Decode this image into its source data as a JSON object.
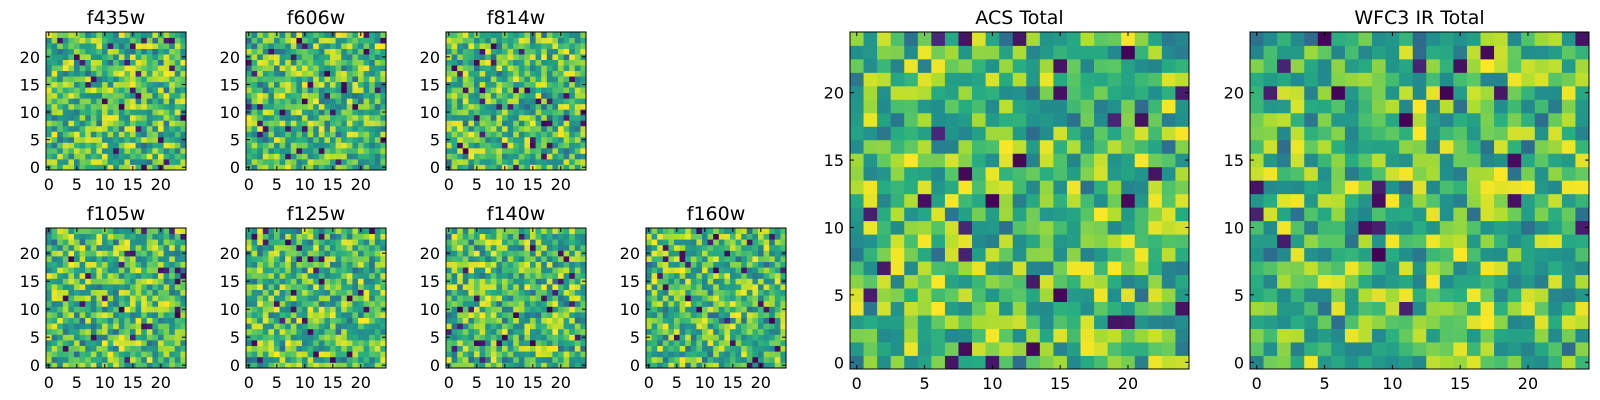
{
  "chart_data": [
    {
      "type": "heatmap",
      "title": "f435w",
      "shape": [
        25,
        25
      ],
      "xticks": [
        0,
        5,
        10,
        15,
        20
      ],
      "yticks": [
        0,
        5,
        10,
        15,
        20
      ],
      "colormap": "viridis",
      "seed": 435
    },
    {
      "type": "heatmap",
      "title": "f606w",
      "shape": [
        25,
        25
      ],
      "xticks": [
        0,
        5,
        10,
        15,
        20
      ],
      "yticks": [
        0,
        5,
        10,
        15,
        20
      ],
      "colormap": "viridis",
      "seed": 606
    },
    {
      "type": "heatmap",
      "title": "f814w",
      "shape": [
        25,
        25
      ],
      "xticks": [
        0,
        5,
        10,
        15,
        20
      ],
      "yticks": [
        0,
        5,
        10,
        15,
        20
      ],
      "colormap": "viridis",
      "seed": 814
    },
    {
      "type": "heatmap",
      "title": "f105w",
      "shape": [
        25,
        25
      ],
      "xticks": [
        0,
        5,
        10,
        15,
        20
      ],
      "yticks": [
        0,
        5,
        10,
        15,
        20
      ],
      "colormap": "viridis",
      "seed": 105
    },
    {
      "type": "heatmap",
      "title": "f125w",
      "shape": [
        25,
        25
      ],
      "xticks": [
        0,
        5,
        10,
        15,
        20
      ],
      "yticks": [
        0,
        5,
        10,
        15,
        20
      ],
      "colormap": "viridis",
      "seed": 125
    },
    {
      "type": "heatmap",
      "title": "f140w",
      "shape": [
        25,
        25
      ],
      "xticks": [
        0,
        5,
        10,
        15,
        20
      ],
      "yticks": [
        0,
        5,
        10,
        15,
        20
      ],
      "colormap": "viridis",
      "seed": 140
    },
    {
      "type": "heatmap",
      "title": "f160w",
      "shape": [
        25,
        25
      ],
      "xticks": [
        0,
        5,
        10,
        15,
        20
      ],
      "yticks": [
        0,
        5,
        10,
        15,
        20
      ],
      "colormap": "viridis",
      "seed": 160
    },
    {
      "type": "heatmap",
      "title": "ACS Total",
      "shape": [
        25,
        25
      ],
      "xticks": [
        0,
        5,
        10,
        15,
        20
      ],
      "yticks": [
        0,
        5,
        10,
        15,
        20
      ],
      "colormap": "viridis",
      "seed": 1001
    },
    {
      "type": "heatmap",
      "title": "WFC3 IR Total",
      "shape": [
        25,
        25
      ],
      "xticks": [
        0,
        5,
        10,
        15,
        20
      ],
      "yticks": [
        0,
        5,
        10,
        15,
        20
      ],
      "colormap": "viridis",
      "seed": 2002
    }
  ],
  "colors": {
    "viridis_dark": "#440154",
    "viridis_mid": "#21918c",
    "viridis_bright": "#fde725"
  }
}
